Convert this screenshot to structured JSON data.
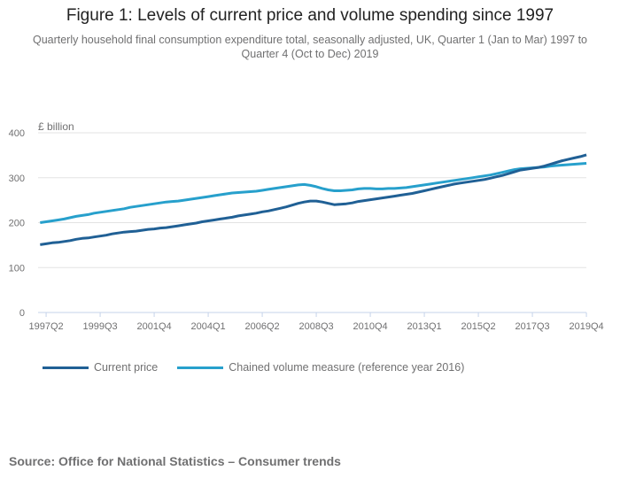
{
  "chart_data": {
    "type": "line",
    "title": "Figure 1: Levels of current price and volume spending since 1997",
    "subtitle": "Quarterly household final consumption expenditure total, seasonally adjusted, UK, Quarter 1 (Jan to Mar) 1997 to Quarter 4 (Oct to Dec) 2019",
    "ylabel": "£ billion",
    "xlabel": "",
    "ylim": [
      0,
      400
    ],
    "yticks": [
      0,
      100,
      200,
      300,
      400
    ],
    "x_start": "1997Q1",
    "x_end": "2019Q4",
    "xtick_labels": [
      "1997Q2",
      "1999Q3",
      "2001Q4",
      "2004Q1",
      "2006Q2",
      "2008Q3",
      "2010Q4",
      "2013Q1",
      "2015Q2",
      "2017Q3",
      "2019Q4"
    ],
    "grid": true,
    "legend_position": "bottom",
    "series": [
      {
        "name": "Current price",
        "color": "#206095",
        "values": [
          151,
          153,
          155,
          156,
          158,
          160,
          163,
          165,
          166,
          168,
          170,
          172,
          175,
          177,
          179,
          180,
          181,
          183,
          185,
          186,
          188,
          189,
          191,
          193,
          195,
          197,
          199,
          202,
          204,
          206,
          208,
          210,
          212,
          215,
          217,
          219,
          221,
          224,
          226,
          229,
          232,
          235,
          239,
          243,
          246,
          248,
          248,
          246,
          243,
          240,
          241,
          242,
          244,
          247,
          249,
          251,
          253,
          255,
          257,
          259,
          261,
          263,
          265,
          268,
          271,
          274,
          277,
          280,
          283,
          286,
          288,
          290,
          292,
          294,
          296,
          299,
          302,
          305,
          309,
          313,
          317,
          319,
          321,
          323,
          326,
          330,
          334,
          338,
          341,
          344,
          347,
          351
        ]
      },
      {
        "name": "Chained volume measure (reference year 2016)",
        "color": "#27a0cc",
        "values": [
          200,
          202,
          204,
          206,
          208,
          211,
          214,
          216,
          218,
          221,
          223,
          225,
          227,
          229,
          231,
          234,
          236,
          238,
          240,
          242,
          244,
          246,
          247,
          248,
          250,
          252,
          254,
          256,
          258,
          260,
          262,
          264,
          266,
          267,
          268,
          269,
          270,
          272,
          274,
          276,
          278,
          280,
          282,
          284,
          285,
          283,
          280,
          276,
          273,
          271,
          271,
          272,
          273,
          275,
          276,
          276,
          275,
          275,
          276,
          276,
          277,
          278,
          280,
          282,
          284,
          286,
          288,
          290,
          292,
          294,
          296,
          298,
          300,
          302,
          304,
          306,
          309,
          312,
          315,
          318,
          320,
          321,
          322,
          323,
          324,
          326,
          327,
          328,
          329,
          330,
          331,
          332
        ]
      }
    ]
  },
  "source": "Source: Office for National Statistics – Consumer trends"
}
